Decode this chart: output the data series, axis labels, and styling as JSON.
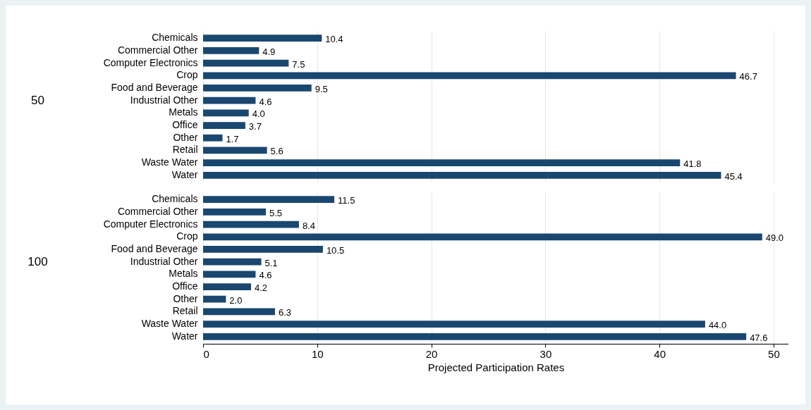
{
  "chart_data": [
    {
      "type": "bar",
      "orientation": "horizontal",
      "ylabel": "50",
      "categories": [
        "Chemicals",
        "Commercial Other",
        "Computer Electronics",
        "Crop",
        "Food and Beverage",
        "Industrial Other",
        "Metals",
        "Office",
        "Other",
        "Retail",
        "Waste Water",
        "Water"
      ],
      "values": [
        10.4,
        4.9,
        7.5,
        46.7,
        9.5,
        4.6,
        4.0,
        3.7,
        1.7,
        5.6,
        41.8,
        45.4
      ],
      "value_labels": [
        "10.4",
        "4.9",
        "7.5",
        "46.7",
        "9.5",
        "4.6",
        "4.0",
        "3.7",
        "1.7",
        "5.6",
        "41.8",
        "45.4"
      ],
      "color": "#1a476f",
      "xlim": [
        0,
        51.3
      ],
      "xticks": [
        0,
        10,
        20,
        30,
        40,
        50
      ],
      "grid": "x",
      "tick_labels": "y"
    },
    {
      "type": "bar",
      "orientation": "horizontal",
      "ylabel": "100",
      "xlabel": "Projected Participation Rates",
      "categories": [
        "Chemicals",
        "Commercial Other",
        "Computer Electronics",
        "Crop",
        "Food and Beverage",
        "Industrial Other",
        "Metals",
        "Office",
        "Other",
        "Retail",
        "Waste Water",
        "Water"
      ],
      "values": [
        11.5,
        5.5,
        8.4,
        49.0,
        10.5,
        5.1,
        4.6,
        4.2,
        2.0,
        6.3,
        44.0,
        47.6
      ],
      "value_labels": [
        "11.5",
        "5.5",
        "8.4",
        "49.0",
        "10.5",
        "5.1",
        "4.6",
        "4.2",
        "2.0",
        "6.3",
        "44.0",
        "47.6"
      ],
      "color": "#1a476f",
      "xlim": [
        0,
        51.3
      ],
      "xticks": [
        0,
        10,
        20,
        30,
        40,
        50
      ],
      "grid": "x"
    }
  ]
}
